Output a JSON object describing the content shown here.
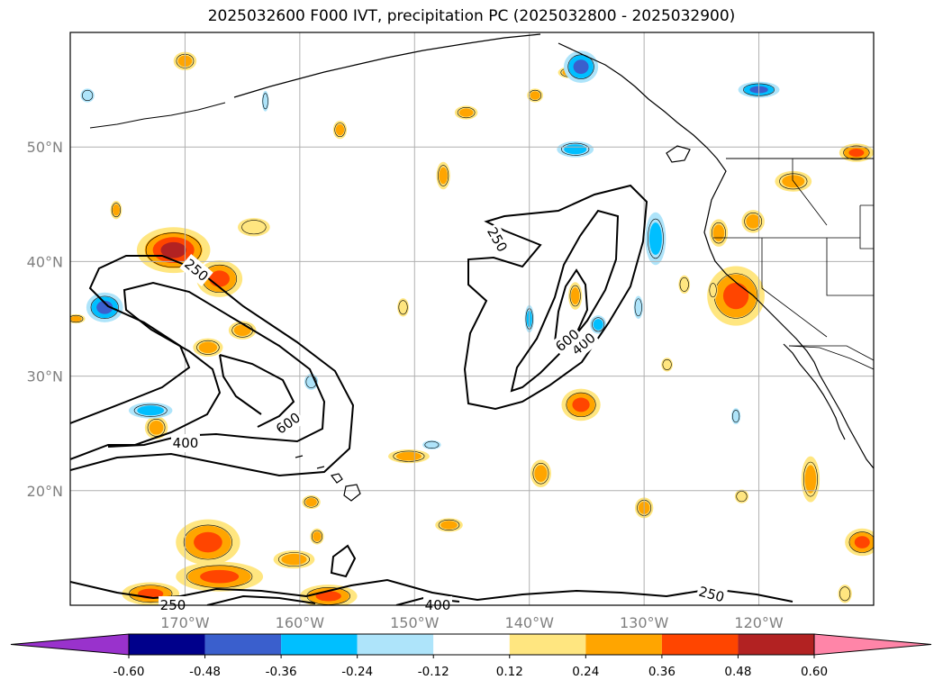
{
  "title": "2025032600 F000 IVT, precipitation PC (2025032800 - 2025032900)",
  "map": {
    "lon_range": [
      -180,
      -110
    ],
    "lat_range": [
      10,
      60
    ],
    "lat_ticks": [
      {
        "value": 20,
        "label": "20°N"
      },
      {
        "value": 30,
        "label": "30°N"
      },
      {
        "value": 40,
        "label": "40°N"
      },
      {
        "value": 50,
        "label": "50°N"
      }
    ],
    "lon_ticks": [
      {
        "value": -170,
        "label": "170°W"
      },
      {
        "value": -160,
        "label": "160°W"
      },
      {
        "value": -150,
        "label": "150°W"
      },
      {
        "value": -140,
        "label": "140°W"
      },
      {
        "value": -130,
        "label": "130°W"
      },
      {
        "value": -120,
        "label": "120°W"
      }
    ],
    "grid": true
  },
  "colorbar": {
    "levels": [
      "-0.60",
      "-0.48",
      "-0.36",
      "-0.24",
      "-0.12",
      "0.12",
      "0.24",
      "0.36",
      "0.48",
      "0.60"
    ],
    "colors": [
      "#9932cc",
      "#00008b",
      "#3a5fcd",
      "#00bfff",
      "#aee4fa",
      "#ffffff",
      "#ffe680",
      "#ffa500",
      "#ff4500",
      "#b22222",
      "#ff85a8"
    ],
    "extend": "both"
  },
  "ivt_contours": {
    "levels": [
      250,
      400,
      600
    ],
    "labels": [
      "250",
      "250",
      "250",
      "250",
      "400",
      "400",
      "400",
      "600",
      "600"
    ]
  },
  "precip_blobs": [
    {
      "lon": -171,
      "lat": 41,
      "rx": 3.2,
      "ry": 2.0,
      "level": 4
    },
    {
      "lon": -167,
      "lat": 38.5,
      "rx": 2.0,
      "ry": 1.6,
      "level": 3
    },
    {
      "lon": -165,
      "lat": 34,
      "rx": 1.2,
      "ry": 0.8,
      "level": 2
    },
    {
      "lon": -168,
      "lat": 32.5,
      "rx": 1.3,
      "ry": 0.8,
      "level": 2
    },
    {
      "lon": -172.5,
      "lat": 25.5,
      "rx": 1.0,
      "ry": 1.0,
      "level": 2
    },
    {
      "lon": -168,
      "lat": 15.5,
      "rx": 2.8,
      "ry": 2.0,
      "level": 3
    },
    {
      "lon": -167,
      "lat": 12.5,
      "rx": 3.8,
      "ry": 1.3,
      "level": 3
    },
    {
      "lon": -173,
      "lat": 11,
      "rx": 2.5,
      "ry": 1.0,
      "level": 3
    },
    {
      "lon": -157.5,
      "lat": 10.8,
      "rx": 2.5,
      "ry": 1.0,
      "level": 3
    },
    {
      "lon": -160.5,
      "lat": 14,
      "rx": 1.8,
      "ry": 0.8,
      "level": 2
    },
    {
      "lon": -150.5,
      "lat": 23,
      "rx": 1.8,
      "ry": 0.6,
      "level": 2
    },
    {
      "lon": -135.5,
      "lat": 27.5,
      "rx": 1.7,
      "ry": 1.4,
      "level": 3
    },
    {
      "lon": -139,
      "lat": 21.5,
      "rx": 0.9,
      "ry": 1.2,
      "level": 2
    },
    {
      "lon": -130,
      "lat": 18.5,
      "rx": 0.8,
      "ry": 0.9,
      "level": 2
    },
    {
      "lon": -122,
      "lat": 37,
      "rx": 2.5,
      "ry": 2.6,
      "level": 3
    },
    {
      "lon": -123.5,
      "lat": 42.5,
      "rx": 0.8,
      "ry": 1.2,
      "level": 2
    },
    {
      "lon": -120.5,
      "lat": 43.5,
      "rx": 1.0,
      "ry": 1.0,
      "level": 2
    },
    {
      "lon": -117,
      "lat": 47,
      "rx": 1.6,
      "ry": 0.9,
      "level": 2
    },
    {
      "lon": -111.5,
      "lat": 49.5,
      "rx": 1.5,
      "ry": 0.8,
      "level": 3
    },
    {
      "lon": -111,
      "lat": 15.5,
      "rx": 1.5,
      "ry": 1.2,
      "level": 3
    },
    {
      "lon": -115.5,
      "lat": 21,
      "rx": 0.8,
      "ry": 2.0,
      "level": 2
    },
    {
      "lon": -145.5,
      "lat": 53,
      "rx": 1.0,
      "ry": 0.6,
      "level": 2
    },
    {
      "lon": -136.5,
      "lat": 56.5,
      "rx": 1.0,
      "ry": 0.5,
      "level": 2
    },
    {
      "lon": -179.5,
      "lat": 35,
      "rx": 0.8,
      "ry": 0.4,
      "level": 2
    },
    {
      "lon": -176,
      "lat": 44.5,
      "rx": 0.5,
      "ry": 0.8,
      "level": 2
    },
    {
      "lon": -159,
      "lat": 19,
      "rx": 0.8,
      "ry": 0.6,
      "level": 2
    },
    {
      "lon": -158.5,
      "lat": 16,
      "rx": 0.6,
      "ry": 0.7,
      "level": 2
    },
    {
      "lon": -147,
      "lat": 17,
      "rx": 1.2,
      "ry": 0.6,
      "level": 2
    },
    {
      "lon": -136,
      "lat": 37,
      "rx": 0.6,
      "ry": 1.2,
      "level": 2
    },
    {
      "lon": -151,
      "lat": 36,
      "rx": 0.5,
      "ry": 0.8,
      "level": 1
    },
    {
      "lon": -147.5,
      "lat": 47.5,
      "rx": 0.6,
      "ry": 1.2,
      "level": 2
    },
    {
      "lon": -156.5,
      "lat": 51.5,
      "rx": 0.6,
      "ry": 0.8,
      "level": 2
    },
    {
      "lon": -164,
      "lat": 43,
      "rx": 1.4,
      "ry": 0.8,
      "level": 1
    },
    {
      "lon": -170,
      "lat": 57.5,
      "rx": 1.0,
      "ry": 0.8,
      "level": 2
    },
    {
      "lon": -128,
      "lat": 31,
      "rx": 0.5,
      "ry": 0.6,
      "level": 1
    },
    {
      "lon": -121.5,
      "lat": 19.5,
      "rx": 0.6,
      "ry": 0.6,
      "level": 1
    },
    {
      "lon": -139.5,
      "lat": 54.5,
      "rx": 0.7,
      "ry": 0.6,
      "level": 2
    },
    {
      "lon": -126.5,
      "lat": 38,
      "rx": 0.5,
      "ry": 0.8,
      "level": 1
    },
    {
      "lon": -124,
      "lat": 37.5,
      "rx": 0.4,
      "ry": 0.8,
      "level": 1
    },
    {
      "lon": -112.5,
      "lat": 11,
      "rx": 0.6,
      "ry": 0.8,
      "level": 1
    }
  ],
  "precip_neg_blobs": [
    {
      "lon": -177,
      "lat": 36,
      "rx": 1.6,
      "ry": 1.3,
      "level": 3
    },
    {
      "lon": -173,
      "lat": 27,
      "rx": 1.9,
      "ry": 0.7,
      "level": 2
    },
    {
      "lon": -135.5,
      "lat": 57,
      "rx": 1.5,
      "ry": 1.4,
      "level": 3
    },
    {
      "lon": -129,
      "lat": 42,
      "rx": 0.9,
      "ry": 2.3,
      "level": 2
    },
    {
      "lon": -120,
      "lat": 55,
      "rx": 1.8,
      "ry": 0.7,
      "level": 3
    },
    {
      "lon": -136,
      "lat": 49.8,
      "rx": 1.6,
      "ry": 0.7,
      "level": 2
    },
    {
      "lon": -134,
      "lat": 34.5,
      "rx": 0.7,
      "ry": 0.8,
      "level": 2
    },
    {
      "lon": -140,
      "lat": 35,
      "rx": 0.4,
      "ry": 1.2,
      "level": 2
    },
    {
      "lon": -130.5,
      "lat": 36,
      "rx": 0.4,
      "ry": 1.0,
      "level": 1
    },
    {
      "lon": -122,
      "lat": 26.5,
      "rx": 0.4,
      "ry": 0.7,
      "level": 1
    },
    {
      "lon": -159,
      "lat": 29.5,
      "rx": 0.6,
      "ry": 0.7,
      "level": 1
    },
    {
      "lon": -148.5,
      "lat": 24,
      "rx": 0.8,
      "ry": 0.4,
      "level": 1
    },
    {
      "lon": -163,
      "lat": 54,
      "rx": 0.3,
      "ry": 0.9,
      "level": 1
    },
    {
      "lon": -178.5,
      "lat": 54.5,
      "rx": 0.6,
      "ry": 0.6,
      "level": 1
    }
  ]
}
